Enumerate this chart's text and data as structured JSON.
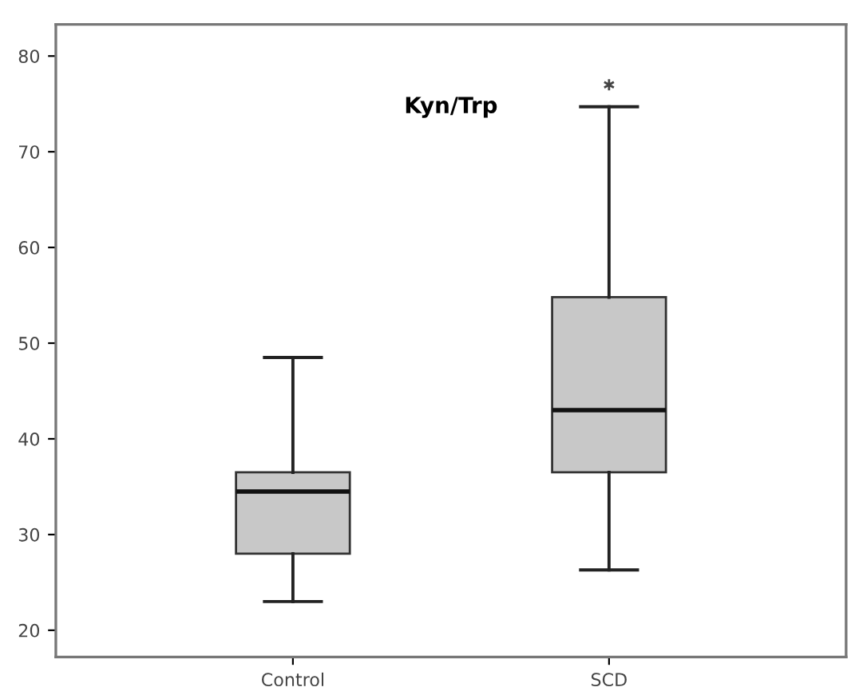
{
  "chart_data": {
    "type": "box",
    "title": "Kyn/Trp",
    "categories": [
      "Control",
      "SCD"
    ],
    "boxes": [
      {
        "low": 23,
        "q1": 28,
        "median": 34.5,
        "q3": 36.5,
        "high": 48.5
      },
      {
        "low": 26.3,
        "q1": 36.5,
        "median": 43,
        "q3": 54.8,
        "high": 74.7,
        "outliers": [
          77
        ]
      }
    ],
    "color": "#c8c8c8",
    "marker": "star",
    "ylim": [
      17.2,
      83.3
    ],
    "yticks": [
      20,
      30,
      40,
      50,
      60,
      70,
      80
    ],
    "grid": false
  }
}
